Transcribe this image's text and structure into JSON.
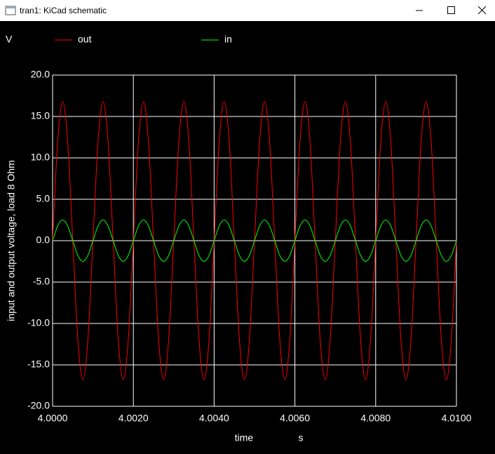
{
  "window": {
    "title": "tran1: KiCad schematic"
  },
  "chart_data": {
    "type": "line",
    "y_unit": "V",
    "ylabel": "input and output voltage, load 8 Ohm",
    "xlabel": "time",
    "x_unit": "s",
    "xlim": [
      4.0,
      4.01
    ],
    "ylim": [
      -20,
      20
    ],
    "grid": true,
    "xticks": [
      {
        "value": 4.0,
        "label": "4.0000"
      },
      {
        "value": 4.002,
        "label": "4.0020"
      },
      {
        "value": 4.004,
        "label": "4.0040"
      },
      {
        "value": 4.006,
        "label": "4.0060"
      },
      {
        "value": 4.008,
        "label": "4.0080"
      },
      {
        "value": 4.01,
        "label": "4.0100"
      }
    ],
    "yticks": [
      {
        "value": 20,
        "label": "20.0"
      },
      {
        "value": 15,
        "label": "15.0"
      },
      {
        "value": 10,
        "label": "10.0"
      },
      {
        "value": 5,
        "label": "5.0"
      },
      {
        "value": 0,
        "label": "0.0"
      },
      {
        "value": -5,
        "label": "-5.0"
      },
      {
        "value": -10,
        "label": "-10.0"
      },
      {
        "value": -15,
        "label": "-15.0"
      },
      {
        "value": -20,
        "label": "-20.0"
      }
    ],
    "x": [
      4,
      4.000125,
      4.00025,
      4.000375,
      4.0005,
      4.000625,
      4.00075,
      4.000875,
      4.001,
      4.001125,
      4.00125,
      4.001375,
      4.0015,
      4.001625,
      4.00175,
      4.001875,
      4.002,
      4.002125,
      4.00225,
      4.002375,
      4.0025,
      4.002625,
      4.00275,
      4.002875,
      4.003,
      4.003125,
      4.00325,
      4.003375,
      4.0035,
      4.003625,
      4.00375,
      4.003875,
      4.004,
      4.004125,
      4.00425,
      4.004375,
      4.0045,
      4.004625,
      4.00475,
      4.004875,
      4.005,
      4.005125,
      4.00525,
      4.005375,
      4.0055,
      4.005625,
      4.00575,
      4.005875,
      4.006,
      4.006125,
      4.00625,
      4.006375,
      4.0065,
      4.006625,
      4.00675,
      4.006875,
      4.007,
      4.007125,
      4.00725,
      4.007375,
      4.0075,
      4.007625,
      4.00775,
      4.007875,
      4.008,
      4.008125,
      4.00825,
      4.008375,
      4.0085,
      4.008625,
      4.00875,
      4.008875,
      4.009,
      4.009125,
      4.00925,
      4.009375,
      4.0095,
      4.009625,
      4.00975,
      4.009875,
      4.01
    ],
    "series": [
      {
        "name": "out",
        "color": "#ff0000",
        "values": [
          0,
          11.88,
          16.8,
          11.88,
          0,
          -11.88,
          -16.8,
          -11.88,
          0,
          11.88,
          16.8,
          11.88,
          0,
          -11.88,
          -16.8,
          -11.88,
          0,
          11.88,
          16.8,
          11.88,
          0,
          -11.88,
          -16.8,
          -11.88,
          0,
          11.88,
          16.8,
          11.88,
          0,
          -11.88,
          -16.8,
          -11.88,
          0,
          11.88,
          16.8,
          11.88,
          0,
          -11.88,
          -16.8,
          -11.88,
          0,
          11.88,
          16.8,
          11.88,
          0,
          -11.88,
          -16.8,
          -11.88,
          0,
          11.88,
          16.8,
          11.88,
          0,
          -11.88,
          -16.8,
          -11.88,
          0,
          11.88,
          16.8,
          11.88,
          0,
          -11.88,
          -16.8,
          -11.88,
          0,
          11.88,
          16.8,
          11.88,
          0,
          -11.88,
          -16.8,
          -11.88,
          0,
          11.88,
          16.8,
          11.88,
          0,
          -11.88,
          -16.8,
          -11.88,
          0
        ]
      },
      {
        "name": "in",
        "color": "#00ff00",
        "values": [
          0,
          1.77,
          2.5,
          1.77,
          0,
          -1.77,
          -2.5,
          -1.77,
          0,
          1.77,
          2.5,
          1.77,
          0,
          -1.77,
          -2.5,
          -1.77,
          0,
          1.77,
          2.5,
          1.77,
          0,
          -1.77,
          -2.5,
          -1.77,
          0,
          1.77,
          2.5,
          1.77,
          0,
          -1.77,
          -2.5,
          -1.77,
          0,
          1.77,
          2.5,
          1.77,
          0,
          -1.77,
          -2.5,
          -1.77,
          0,
          1.77,
          2.5,
          1.77,
          0,
          -1.77,
          -2.5,
          -1.77,
          0,
          1.77,
          2.5,
          1.77,
          0,
          -1.77,
          -2.5,
          -1.77,
          0,
          1.77,
          2.5,
          1.77,
          0,
          -1.77,
          -2.5,
          -1.77,
          0,
          1.77,
          2.5,
          1.77,
          0,
          -1.77,
          -2.5,
          -1.77,
          0,
          1.77,
          2.5,
          1.77,
          0,
          -1.77,
          -2.5,
          -1.77,
          0
        ]
      }
    ]
  }
}
